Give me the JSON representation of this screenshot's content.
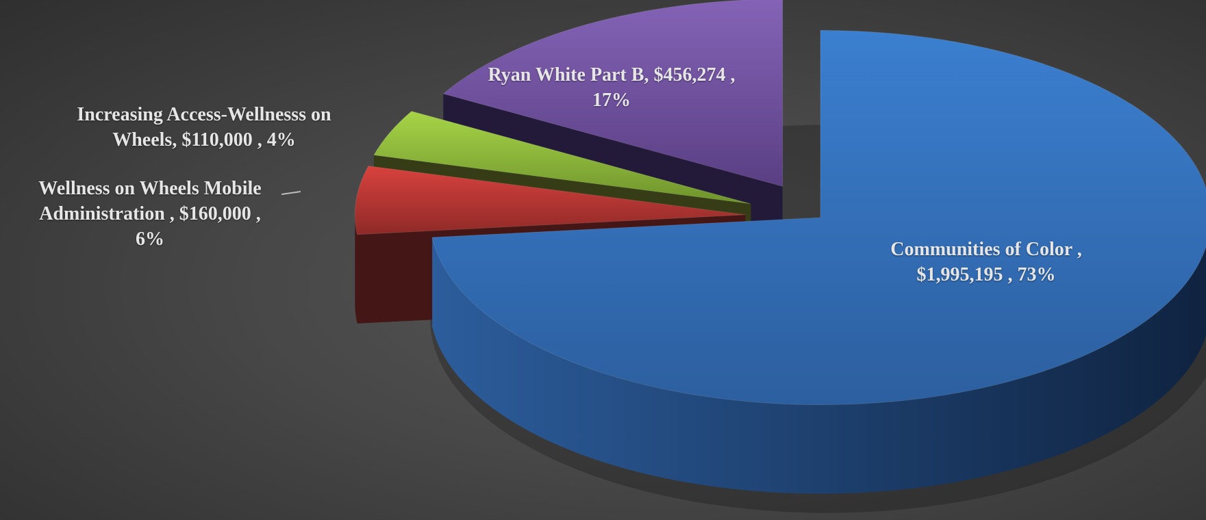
{
  "chart_data": {
    "type": "pie",
    "style": "3d-exploded",
    "title": "",
    "legend": "none",
    "slices": [
      {
        "name": "Communities of Color",
        "value": 1995195,
        "value_label": "$1,995,195",
        "percent_label": "73%",
        "color": "#3a7bcb"
      },
      {
        "name": "Wellness on Wheels Mobile Administration",
        "value": 160000,
        "value_label": "$160,000",
        "percent_label": "6%",
        "color": "#c63d3a"
      },
      {
        "name": "Increasing Access-Wellnesss on Wheels",
        "value": 110000,
        "value_label": "$110,000",
        "percent_label": "4%",
        "color": "#93c23d"
      },
      {
        "name": "Ryan White Part B",
        "value": 456274,
        "value_label": "$456,274",
        "percent_label": "17%",
        "color": "#7a5aa8"
      }
    ],
    "labels": [
      {
        "line1": "Communities of Color ,",
        "line2": "$1,995,195 , 73%"
      },
      {
        "line1": "Wellness on Wheels Mobile",
        "line2": "Administration , $160,000 ,",
        "line3": "6%"
      },
      {
        "line1": "Increasing Access-Wellnesss on",
        "line2": "Wheels, $110,000 , 4%"
      },
      {
        "line1": "Ryan White Part B, $456,274 ,",
        "line2": "17%"
      }
    ]
  }
}
